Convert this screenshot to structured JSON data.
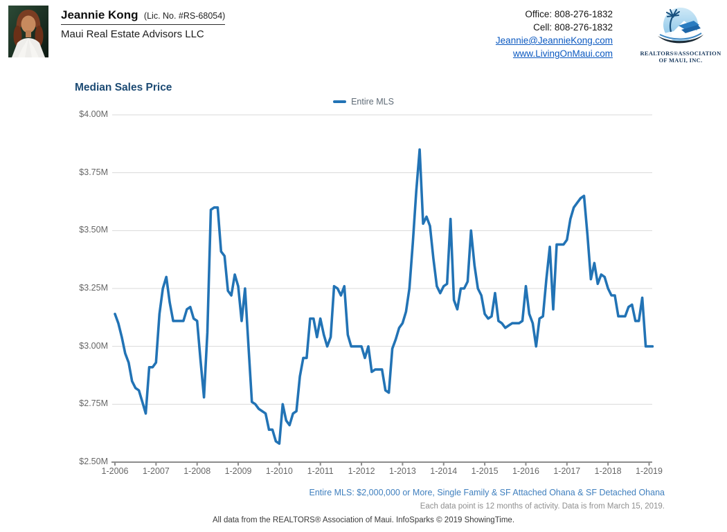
{
  "header": {
    "agent_name": "Jeannie Kong",
    "license": "(Lic. No. #RS-68054)",
    "company": "Maui Real Estate Advisors LLC",
    "office": "Office: 808-276-1832",
    "cell": "Cell: 808-276-1832",
    "email": "Jeannie@JeannieKong.com",
    "website": "www.LivingOnMaui.com",
    "logo_line1": "REALTORS®ASSOCIATION",
    "logo_line2": "OF MAUI, INC."
  },
  "chart_data": {
    "type": "line",
    "title": "Median Sales Price",
    "legend_position": "top-center",
    "grid": true,
    "line_color": "#2273b5",
    "unit": "USD millions",
    "ylim": [
      2.5,
      4.0
    ],
    "y_tick_labels": [
      "$4.00M",
      "$3.75M",
      "$3.50M",
      "$3.25M",
      "$3.00M",
      "$2.75M",
      "$2.50M"
    ],
    "x_tick_labels": [
      "1-2006",
      "1-2007",
      "1-2008",
      "1-2009",
      "1-2010",
      "1-2011",
      "1-2012",
      "1-2013",
      "1-2014",
      "1-2015",
      "1-2016",
      "1-2017",
      "1-2018",
      "1-2019"
    ],
    "x_start_month": "2006-01",
    "x_interval": "monthly",
    "series": [
      {
        "name": "Entire MLS",
        "values": [
          3.14,
          3.1,
          3.04,
          2.97,
          2.93,
          2.85,
          2.82,
          2.81,
          2.76,
          2.71,
          2.91,
          2.91,
          2.93,
          3.14,
          3.25,
          3.3,
          3.19,
          3.11,
          3.11,
          3.11,
          3.11,
          3.16,
          3.17,
          3.12,
          3.11,
          2.94,
          2.78,
          3.06,
          3.59,
          3.6,
          3.6,
          3.41,
          3.39,
          3.24,
          3.22,
          3.31,
          3.26,
          3.11,
          3.25,
          3.0,
          2.76,
          2.75,
          2.73,
          2.72,
          2.71,
          2.64,
          2.64,
          2.59,
          2.58,
          2.75,
          2.68,
          2.66,
          2.71,
          2.72,
          2.87,
          2.95,
          2.95,
          3.12,
          3.12,
          3.04,
          3.12,
          3.05,
          3.0,
          3.04,
          3.26,
          3.25,
          3.22,
          3.26,
          3.05,
          3.0,
          3.0,
          3.0,
          3.0,
          2.95,
          3.0,
          2.89,
          2.9,
          2.9,
          2.9,
          2.81,
          2.8,
          2.99,
          3.03,
          3.08,
          3.1,
          3.15,
          3.25,
          3.45,
          3.67,
          3.85,
          3.53,
          3.56,
          3.52,
          3.38,
          3.26,
          3.23,
          3.26,
          3.27,
          3.55,
          3.2,
          3.16,
          3.25,
          3.25,
          3.28,
          3.5,
          3.35,
          3.25,
          3.22,
          3.14,
          3.12,
          3.13,
          3.23,
          3.11,
          3.1,
          3.08,
          3.09,
          3.1,
          3.1,
          3.1,
          3.11,
          3.26,
          3.14,
          3.1,
          3.0,
          3.12,
          3.13,
          3.29,
          3.43,
          3.16,
          3.44,
          3.44,
          3.44,
          3.46,
          3.55,
          3.6,
          3.62,
          3.64,
          3.65,
          3.48,
          3.29,
          3.36,
          3.27,
          3.31,
          3.3,
          3.25,
          3.22,
          3.22,
          3.13,
          3.13,
          3.13,
          3.17,
          3.18,
          3.11,
          3.11,
          3.21,
          3.0,
          3.0,
          3.0
        ]
      }
    ]
  },
  "footnotes": {
    "filter_line": "Entire MLS: $2,000,000 or More, Single Family & SF Attached Ohana & SF Detached Ohana",
    "data_note": "Each data point is 12 months of activity. Data is from March 15, 2019.",
    "attribution": "All data from the REALTORS® Association of Maui. InfoSparks © 2019 ShowingTime."
  }
}
